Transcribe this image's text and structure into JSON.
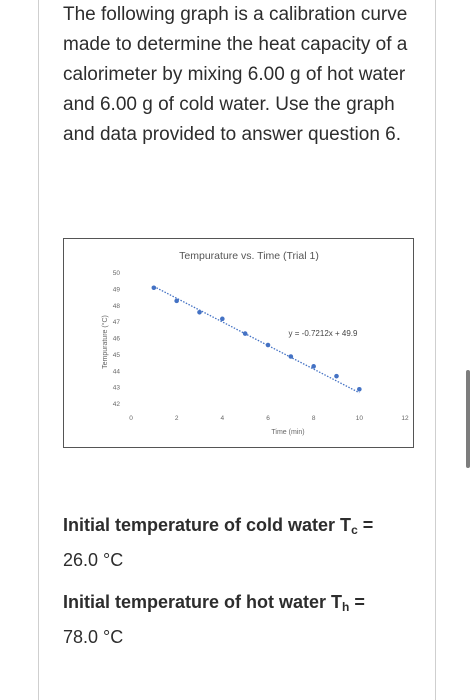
{
  "question": {
    "text": "The following graph is a calibration curve made to determine the heat capacity of a calorimeter by mixing 6.00 g of hot water and 6.00 g of cold water. Use the graph and data provided to answer question 6."
  },
  "chart_data": {
    "type": "scatter",
    "title": "Tempurature vs. Time (Trial 1)",
    "xlabel": "Time (min)",
    "ylabel": "Tempurature (°C)",
    "xlim": [
      0,
      12
    ],
    "ylim": [
      42,
      50
    ],
    "x_ticks": [
      "0",
      "2",
      "4",
      "6",
      "8",
      "10",
      "12"
    ],
    "y_ticks": [
      "42",
      "43",
      "44",
      "45",
      "46",
      "47",
      "48",
      "49",
      "50"
    ],
    "series": [
      {
        "x": [
          1,
          2,
          3,
          4,
          5,
          6,
          7,
          8,
          9,
          10
        ],
        "y": [
          49.1,
          48.3,
          47.6,
          47.2,
          46.3,
          45.6,
          44.9,
          44.3,
          43.7,
          42.9
        ]
      }
    ],
    "trendline": {
      "slope": -0.7212,
      "intercept": 49.9,
      "label": "y = -0.7212x + 49.9"
    },
    "grid": false,
    "colors": {
      "points": "#4472c4",
      "trendline": "#4472c4"
    }
  },
  "cold_water": {
    "label_prefix": "Initial temperature of cold water T",
    "subscript": "c",
    "equals": " =",
    "value": "26.0 °C"
  },
  "hot_water": {
    "label_prefix": "Initial temperature of hot water T",
    "subscript": "h",
    "equals": " =",
    "value": "78.0 °C"
  }
}
